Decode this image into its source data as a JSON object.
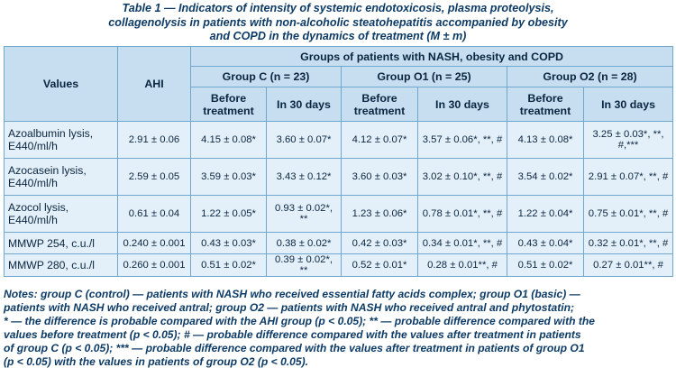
{
  "caption": {
    "line1": "Table 1 — Indicators of intensity of systemic endotoxicosis, plasma proteolysis,",
    "line2": "collagenolysis in patients with non-alcoholic steatohepatitis accompanied by obesity",
    "line3": "and COPD in the dynamics of treatment (M ± m)"
  },
  "table": {
    "header": {
      "values": "Values",
      "ahi": "AHI",
      "groups_title": "Groups of patients with NASH, obesity and COPD",
      "groups": [
        "Group C (n = 23)",
        "Group O1 (n = 25)",
        "Group O2 (n = 28)"
      ],
      "before": "Before treatment",
      "after": "In 30 days"
    },
    "rows": [
      {
        "label_line1": "Azoalbumin lysis,",
        "label_line2": "E440/ml/h",
        "cells": [
          "2.91 ± 0.06",
          "4.15 ± 0.08*",
          "3.60 ± 0.07*",
          "4.12 ± 0.07*",
          "3.57 ± 0.06*, **, #",
          "4.13 ± 0.08*",
          "3.25 ± 0.03*, **, #,***"
        ]
      },
      {
        "label_line1": "Azocasein lysis,",
        "label_line2": "E440/ml/h",
        "cells": [
          "2.59 ± 0.05",
          "3.59 ± 0.03*",
          "3.43 ± 0.12*",
          "3.60 ± 0.03*",
          "3.02 ± 0.10*, **, #",
          "3.54 ± 0.02*",
          "2.91 ± 0.07*, **, #"
        ]
      },
      {
        "label_line1": "Azocol lysis,",
        "label_line2": "E440/ml/h",
        "cells": [
          "0.61 ± 0.04",
          "1.22 ± 0.05*",
          "0.93 ± 0.02*, **",
          "1.23 ± 0.06*",
          "0.78 ± 0.01*, **, #",
          "1.22 ± 0.04*",
          "0.75 ± 0.01*, **, #"
        ]
      },
      {
        "label_line1": "MMWP 254, c.u./l",
        "label_line2": "",
        "cells": [
          "0.240 ± 0.001",
          "0.43 ± 0.03*",
          "0.38 ± 0.02*",
          "0.42 ± 0.03*",
          "0.34 ± 0.01*, **, #",
          "0.43 ± 0.04*",
          "0.32 ± 0.01*, **, #"
        ]
      },
      {
        "label_line1": "MMWP 280, c.u./l",
        "label_line2": "",
        "cells": [
          "0.260 ± 0.001",
          "0.51 ± 0.02*",
          "0.39 ± 0.02*, **",
          "0.52 ± 0.01*",
          "0.28 ± 0.01**, #",
          "0.51 ± 0.02*",
          "0.27 ± 0.01**, #"
        ]
      }
    ]
  },
  "notes": {
    "line1": "Notes: group C (control) — patients with NASH who received essential fatty acids complex; group O1 (basic) —",
    "line2": "patients with NASH who received antral; group O2 — patients with NASH who received antral and phytostatin;",
    "line3": "* — the difference is probable compared with the AHI group (p < 0.05); ** — probable difference compared with the",
    "line4": "values before treatment (p < 0.05); # — probable difference compared with the values after treatment in patients",
    "line5": "of group C (p < 0.05); *** — probable difference compared with the values after treatment in patients of group O1",
    "line6": "(p < 0.05) with the values in patients of group O2 (p < 0.05)."
  }
}
